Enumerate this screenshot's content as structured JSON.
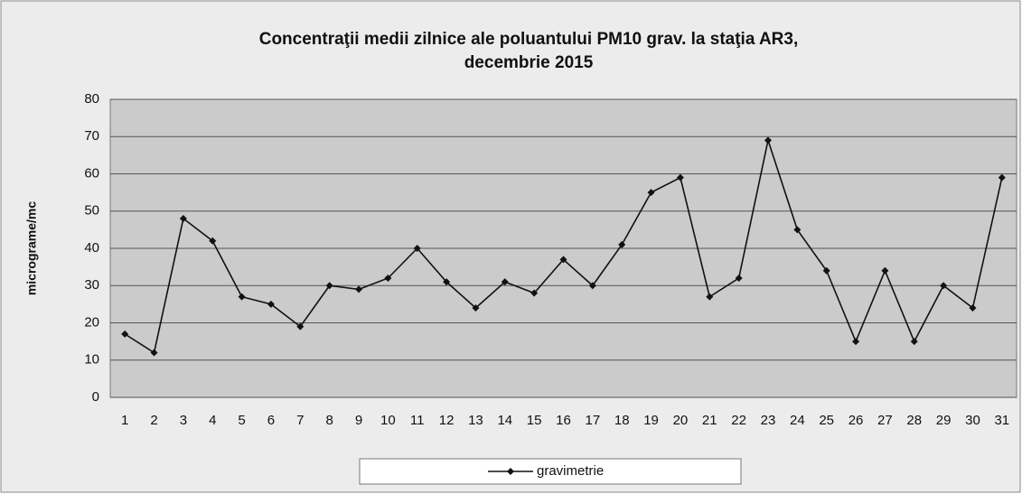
{
  "chart_data": {
    "type": "line",
    "title": [
      "Concentraţii medii zilnice ale poluantului  PM10 grav. la staţia AR3,",
      "decembrie 2015"
    ],
    "y_label": "micrograme/mc",
    "categories": [
      "1",
      "2",
      "3",
      "4",
      "5",
      "6",
      "7",
      "8",
      "9",
      "10",
      "11",
      "12",
      "13",
      "14",
      "15",
      "16",
      "17",
      "18",
      "19",
      "20",
      "21",
      "22",
      "23",
      "24",
      "25",
      "26",
      "27",
      "28",
      "29",
      "30",
      "31"
    ],
    "series": [
      {
        "name": "gravimetrie",
        "color": "#111111",
        "values": [
          17,
          12,
          48,
          42,
          27,
          25,
          19,
          30,
          29,
          32,
          40,
          31,
          24,
          31,
          28,
          37,
          30,
          41,
          55,
          59,
          27,
          32,
          69,
          45,
          34,
          15,
          34,
          15,
          30,
          24,
          59
        ]
      }
    ],
    "ylim": [
      0,
      80
    ],
    "yticks": [
      0,
      10,
      20,
      30,
      40,
      50,
      60,
      70,
      80
    ],
    "grid": true,
    "legend": "bottom"
  }
}
